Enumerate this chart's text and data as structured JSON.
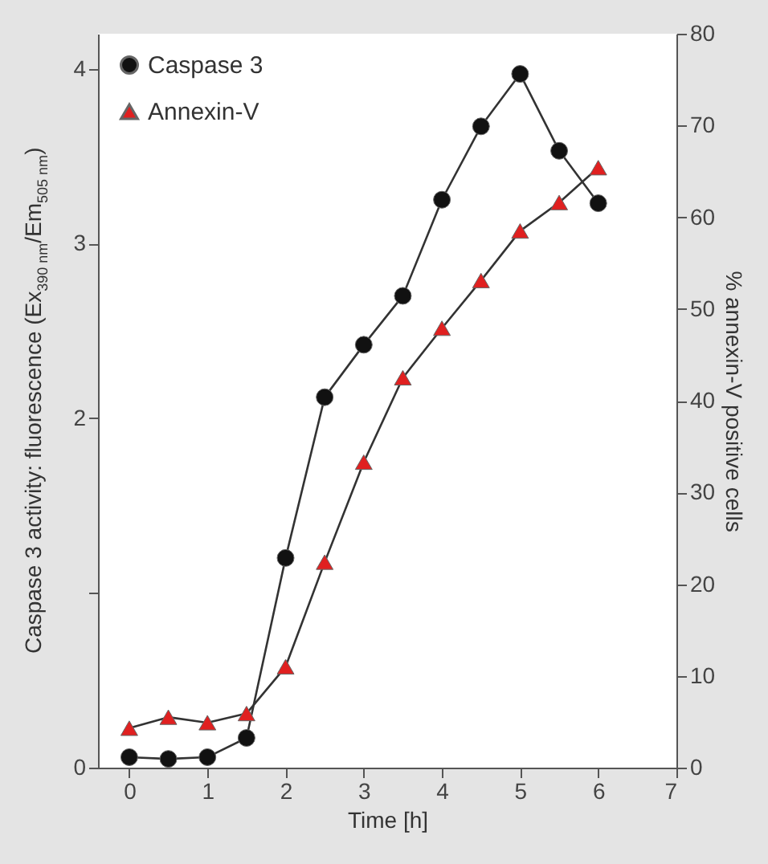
{
  "chart_data": {
    "type": "line",
    "xlabel": "Time [h]",
    "ylabel": "Caspase 3 activity: fluorescence (Ex$_{390 nm}$/Em$_{505 nm}$)",
    "y2label": "% annexin-V positive cells",
    "x": [
      0,
      0.5,
      1,
      1.5,
      2,
      2.5,
      3,
      3.5,
      4,
      4.5,
      5,
      5.5,
      6
    ],
    "series": [
      {
        "name": "Caspase 3",
        "color": "#111111",
        "marker": "circle",
        "values": [
          0.06,
          0.05,
          0.06,
          0.17,
          1.2,
          2.12,
          2.42,
          2.7,
          3.25,
          3.67,
          3.97,
          3.53,
          3.23
        ]
      },
      {
        "name": "Annexin-V",
        "color": "#e02020",
        "marker": "triangle",
        "axis": "y2",
        "values": [
          4.3,
          5.5,
          4.9,
          5.9,
          11,
          22.4,
          33.3,
          42.5,
          47.9,
          53.1,
          58.5,
          61.6,
          65.4
        ]
      }
    ],
    "xlim": [
      -0.4,
      7
    ],
    "xticks": [
      0,
      1,
      2,
      3,
      4,
      5,
      6,
      7
    ],
    "ylim": [
      0,
      4.2
    ],
    "yticks": [
      0,
      {
        "value": 1,
        "label": null
      },
      2,
      3,
      4
    ],
    "y2lim": [
      0,
      80
    ],
    "y2ticks": [
      0,
      10,
      20,
      30,
      40,
      50,
      60,
      70,
      80
    ],
    "grid": false,
    "legend": "top left",
    "line_style": "solid"
  }
}
